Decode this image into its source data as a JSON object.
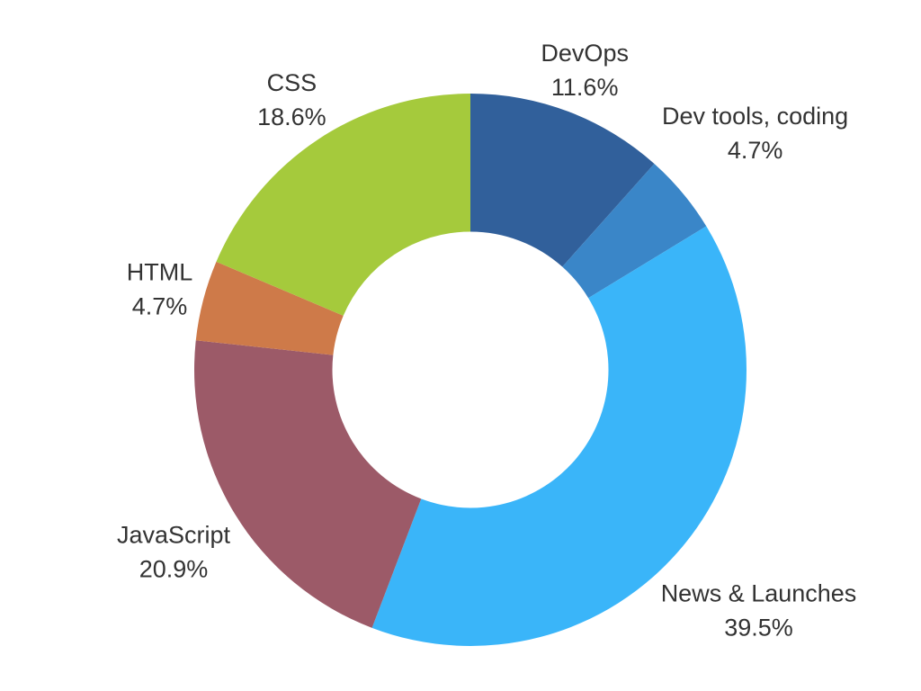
{
  "chart_data": {
    "type": "pie",
    "variant": "donut",
    "title": "",
    "categories": [
      "DevOps",
      "Dev tools, coding",
      "News & Launches",
      "JavaScript",
      "HTML",
      "CSS"
    ],
    "values": [
      11.6,
      4.7,
      39.5,
      20.9,
      4.7,
      18.6
    ],
    "percent_labels": [
      "11.6%",
      "4.7%",
      "39.5%",
      "20.9%",
      "4.7%",
      "18.6%"
    ],
    "colors": [
      "#31609B",
      "#3A86C8",
      "#3AB5F9",
      "#9C5A68",
      "#CE7A49",
      "#A5CA3C"
    ],
    "start_angle_deg": 0,
    "direction": "clockwise",
    "inner_radius_ratio": 0.5,
    "label_position": "outside",
    "legend_position": "none",
    "background_color": "#FFFFFF",
    "label_text_color": "#333333"
  }
}
